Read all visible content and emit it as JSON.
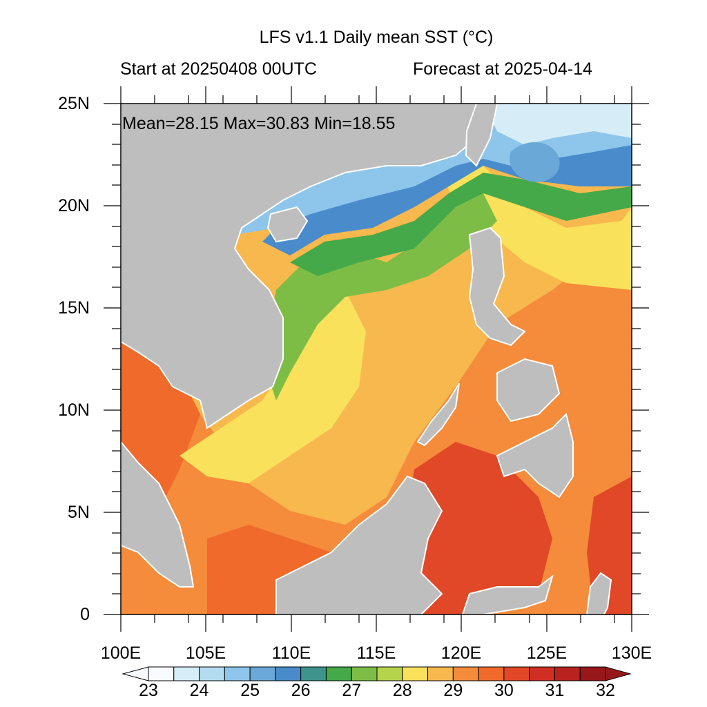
{
  "title": "LFS v1.1 Daily mean SST (°C)",
  "subtitle_left": "Start at 20250408 00UTC",
  "subtitle_right": "Forecast at 2025-04-14",
  "stats": "Mean=28.15  Max=30.83  Min=18.55",
  "lat_labels": [
    "25N",
    "20N",
    "15N",
    "10N",
    "5N",
    "0"
  ],
  "lon_labels": [
    "100E",
    "105E",
    "110E",
    "115E",
    "120E",
    "125E",
    "130E"
  ],
  "colorbar": {
    "labels": [
      "23",
      "24",
      "25",
      "26",
      "27",
      "28",
      "29",
      "30",
      "31",
      "32"
    ],
    "colors": [
      "#f7fbff",
      "#d6edf8",
      "#b4dcf1",
      "#8dc6ea",
      "#6aa8d8",
      "#4a8ccb",
      "#3e948c",
      "#45a849",
      "#7ebd45",
      "#b6d34c",
      "#f9e15b",
      "#f7b84e",
      "#f58c3b",
      "#ef6a2b",
      "#e14827",
      "#d02e23",
      "#b8221f",
      "#98171a"
    ]
  },
  "colors": {
    "land": "#bebebe",
    "ocean_warm": "#f58c3b",
    "ocean_hot": "#e14827",
    "ocean_cool": "#4a8ccb"
  }
}
